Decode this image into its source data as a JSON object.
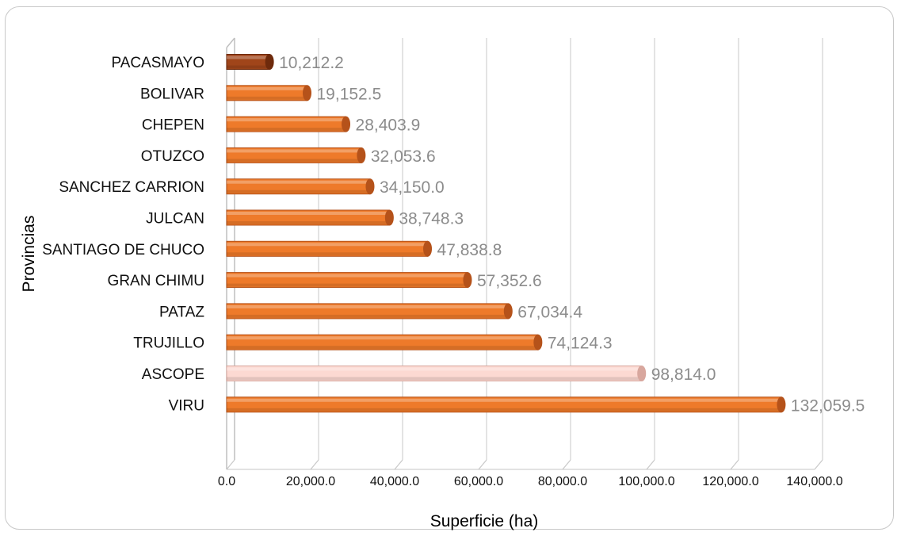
{
  "chart_data": {
    "type": "bar",
    "orientation": "horizontal",
    "categories": [
      "PACASMAYO",
      "BOLIVAR",
      "CHEPEN",
      "OTUZCO",
      "SANCHEZ CARRION",
      "JULCAN",
      "SANTIAGO DE CHUCO",
      "GRAN CHIMU",
      "PATAZ",
      "TRUJILLO",
      "ASCOPE",
      "VIRU"
    ],
    "values": [
      10212.2,
      19152.5,
      28403.9,
      32053.6,
      34150.0,
      38748.3,
      47838.8,
      57352.6,
      67034.4,
      74124.3,
      98814.0,
      132059.5
    ],
    "value_labels": [
      "10,212.2",
      "19,152.5",
      "28,403.9",
      "32,053.6",
      "34,150.0",
      "38,748.3",
      "47,838.8",
      "57,352.6",
      "67,034.4",
      "74,124.3",
      "98,814.0",
      "132,059.5"
    ],
    "xlabel": "Superficie (ha)",
    "ylabel": "Provincias",
    "xlim": [
      0,
      140000
    ],
    "xticks": [
      0,
      20000,
      40000,
      60000,
      80000,
      100000,
      120000,
      140000
    ],
    "xtick_labels": [
      "0.0",
      "20,000.0",
      "40,000.0",
      "60,000.0",
      "80,000.0",
      "100,000.0",
      "120,000.0",
      "140,000.0"
    ],
    "grid": true,
    "bar_colors": [
      "#a0451a",
      "#ee7a2a",
      "#ee7a2a",
      "#ee7a2a",
      "#ee7a2a",
      "#ee7a2a",
      "#ee7a2a",
      "#ee7a2a",
      "#ee7a2a",
      "#ee7a2a",
      "#fcd9d2",
      "#ee7a2a"
    ],
    "bar_end_colors": [
      "#6e2a0c",
      "#b5521a",
      "#b5521a",
      "#b5521a",
      "#b5521a",
      "#b5521a",
      "#b5521a",
      "#b5521a",
      "#b5521a",
      "#b5521a",
      "#d8a79e",
      "#b5521a"
    ]
  }
}
